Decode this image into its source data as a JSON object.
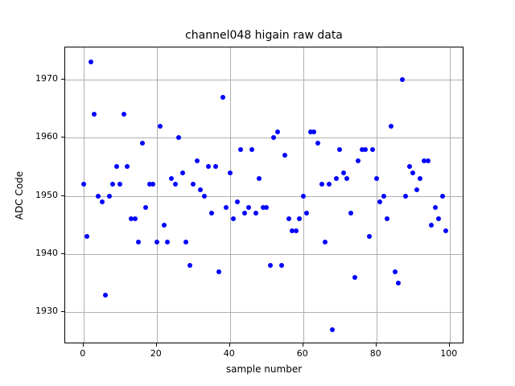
{
  "chart_data": {
    "type": "scatter",
    "title": "channel048 higain raw data",
    "xlabel": "sample number",
    "ylabel": "ADC Code",
    "xlim": [
      -5,
      104
    ],
    "ylim": [
      1924.5,
      1975.5
    ],
    "xticks": [
      0,
      20,
      40,
      60,
      80,
      100
    ],
    "yticks": [
      1930,
      1940,
      1950,
      1960,
      1970
    ],
    "grid": true,
    "legend": "none",
    "marker_color": "#0000ff",
    "x": [
      0,
      1,
      2,
      3,
      4,
      5,
      6,
      7,
      8,
      9,
      10,
      11,
      12,
      13,
      14,
      15,
      16,
      17,
      18,
      19,
      20,
      21,
      22,
      23,
      24,
      25,
      26,
      27,
      28,
      29,
      30,
      31,
      32,
      33,
      34,
      35,
      36,
      37,
      38,
      39,
      40,
      41,
      42,
      43,
      44,
      45,
      46,
      47,
      48,
      49,
      50,
      51,
      52,
      53,
      54,
      55,
      56,
      57,
      58,
      59,
      60,
      61,
      62,
      63,
      64,
      65,
      66,
      67,
      68,
      69,
      70,
      71,
      72,
      73,
      74,
      75,
      76,
      77,
      78,
      79,
      80,
      81,
      82,
      83,
      84,
      85,
      86,
      87,
      88,
      89,
      90,
      91,
      92,
      93,
      94,
      95,
      96,
      97,
      98,
      99
    ],
    "y": [
      1952,
      1943,
      1973,
      1964,
      1950,
      1949,
      1933,
      1950,
      1952,
      1955,
      1952,
      1964,
      1955,
      1946,
      1946,
      1942,
      1959,
      1948,
      1952,
      1952,
      1942,
      1962,
      1945,
      1942,
      1953,
      1952,
      1960,
      1954,
      1942,
      1938,
      1952,
      1956,
      1951,
      1950,
      1955,
      1947,
      1955,
      1937,
      1967,
      1948,
      1954,
      1946,
      1949,
      1958,
      1947,
      1948,
      1958,
      1947,
      1953,
      1948,
      1948,
      1938,
      1960,
      1961,
      1938,
      1957,
      1946,
      1944,
      1944,
      1946,
      1950,
      1947,
      1961,
      1961,
      1959,
      1952,
      1942,
      1952,
      1927,
      1953,
      1958,
      1954,
      1953,
      1947,
      1936,
      1956,
      1958,
      1958,
      1943,
      1958,
      1953,
      1949,
      1950,
      1946,
      1962,
      1937,
      1935,
      1970,
      1950,
      1955,
      1954,
      1951,
      1953,
      1956,
      1956,
      1945,
      1948,
      1946,
      1950,
      1944
    ]
  }
}
